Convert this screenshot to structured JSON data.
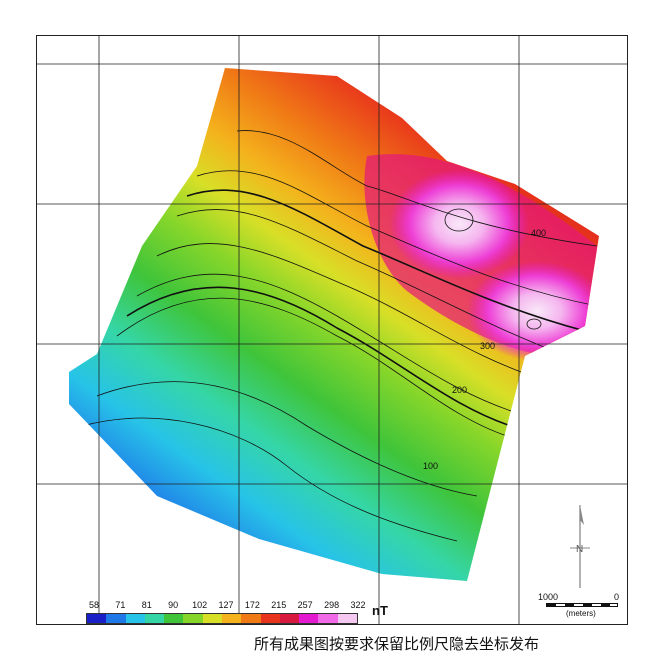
{
  "legend": {
    "ticks": [
      "58",
      "71",
      "81",
      "90",
      "102",
      "127",
      "172",
      "215",
      "257",
      "298",
      "322"
    ],
    "colors": [
      "#1a20c8",
      "#1f78e8",
      "#27c3e8",
      "#35d6a6",
      "#3fc43a",
      "#86d62a",
      "#d8df27",
      "#f4b21c",
      "#f07a16",
      "#e8341c",
      "#d81a40",
      "#e31ad0",
      "#f06ae8",
      "#f5c8f2"
    ],
    "unit": "nT"
  },
  "contour_labels": [
    "400",
    "300",
    "200",
    "100"
  ],
  "scale": {
    "left_label": "1000",
    "right_label": "0",
    "unit_label": "(meters)"
  },
  "north_label": "N",
  "caption": "所有成果图按要求保留比例尺隐去坐标发布"
}
